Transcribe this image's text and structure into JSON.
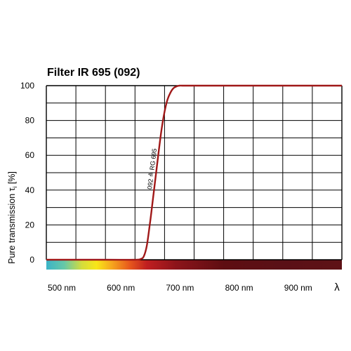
{
  "chart_data": {
    "type": "line",
    "title": "Filter IR 695 (092)",
    "ylabel": "Pure transmission τ",
    "ylabel_sub": "i",
    "ylabel_unit": "[%]",
    "xlabel_symbol": "λ",
    "xlim": [
      500,
      1000
    ],
    "ylim": [
      0,
      100
    ],
    "y_ticks": [
      0,
      20,
      40,
      60,
      80,
      100
    ],
    "y_tick_labels": [
      "0",
      "20",
      "40",
      "60",
      "80",
      "100"
    ],
    "x_ticks": [
      500,
      600,
      700,
      800,
      900
    ],
    "x_tick_labels": [
      "500 nm",
      "600 nm",
      "700 nm",
      "800 nm",
      "900 nm"
    ],
    "grid": true,
    "color_bar": true,
    "annotation": "092 ≙ RG 695",
    "series": [
      {
        "color": "#a01818",
        "x": [
          500,
          600,
          650,
          660,
          665,
          670,
          675,
          680,
          685,
          690,
          695,
          700,
          705,
          710,
          715,
          720,
          725,
          730,
          740,
          760,
          800,
          900,
          1000
        ],
        "y": [
          0,
          0,
          0,
          0.5,
          2,
          8,
          20,
          34,
          48,
          62,
          75,
          85,
          92,
          96,
          98.5,
          99.5,
          100,
          100,
          100,
          100,
          100,
          100,
          100
        ]
      }
    ]
  }
}
